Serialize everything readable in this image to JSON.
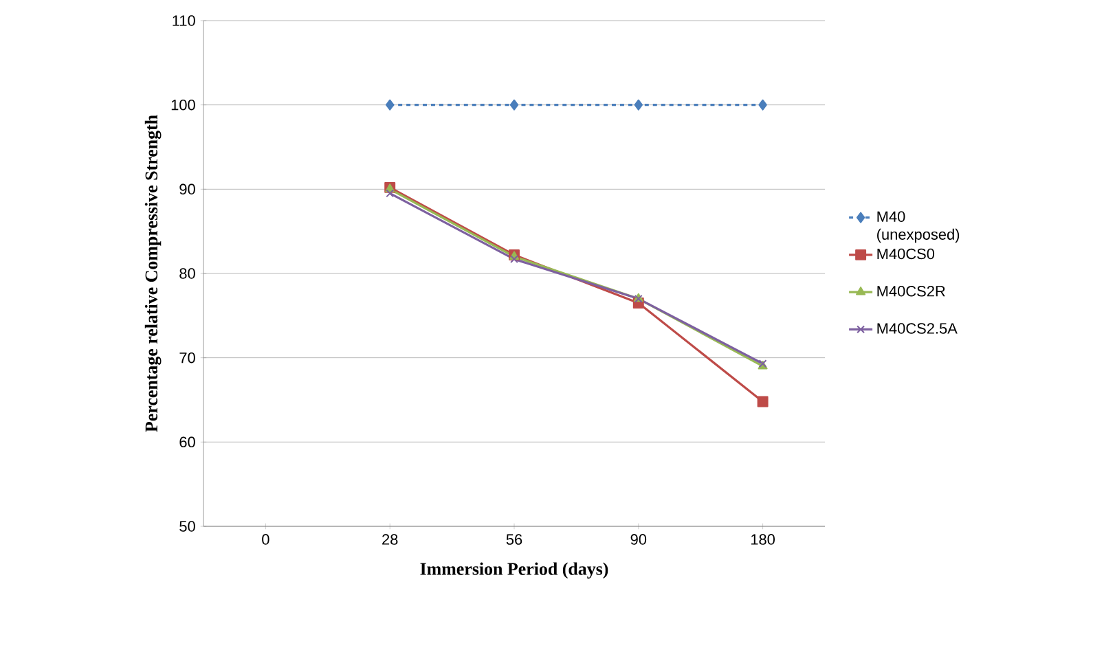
{
  "chart_data": {
    "type": "line",
    "xlabel": "Immersion Period (days)",
    "ylabel": "Percentage relative Compressive Strength",
    "categories": [
      "0",
      "28",
      "56",
      "90",
      "180"
    ],
    "series": [
      {
        "name": "M40 (unexposed)",
        "color": "#4a7ebb",
        "marker": "diamond",
        "line_style": "dashed",
        "values": [
          null,
          100,
          100,
          100,
          100
        ]
      },
      {
        "name": "M40CS0",
        "color": "#be4b48",
        "marker": "square",
        "line_style": "solid",
        "values": [
          null,
          90.2,
          82.2,
          76.5,
          64.8
        ]
      },
      {
        "name": "M40CS2R",
        "color": "#98b954",
        "marker": "triangle",
        "line_style": "solid",
        "values": [
          null,
          90,
          82,
          77,
          69
        ]
      },
      {
        "name": "M40CS2.5A",
        "color": "#7d60a0",
        "marker": "cross",
        "line_style": "solid",
        "values": [
          null,
          89.5,
          81.7,
          77,
          69.3
        ]
      }
    ],
    "ylim": [
      50,
      110
    ],
    "yticks": [
      50,
      60,
      70,
      80,
      90,
      100,
      110
    ],
    "grid": "y",
    "legend": "right"
  }
}
